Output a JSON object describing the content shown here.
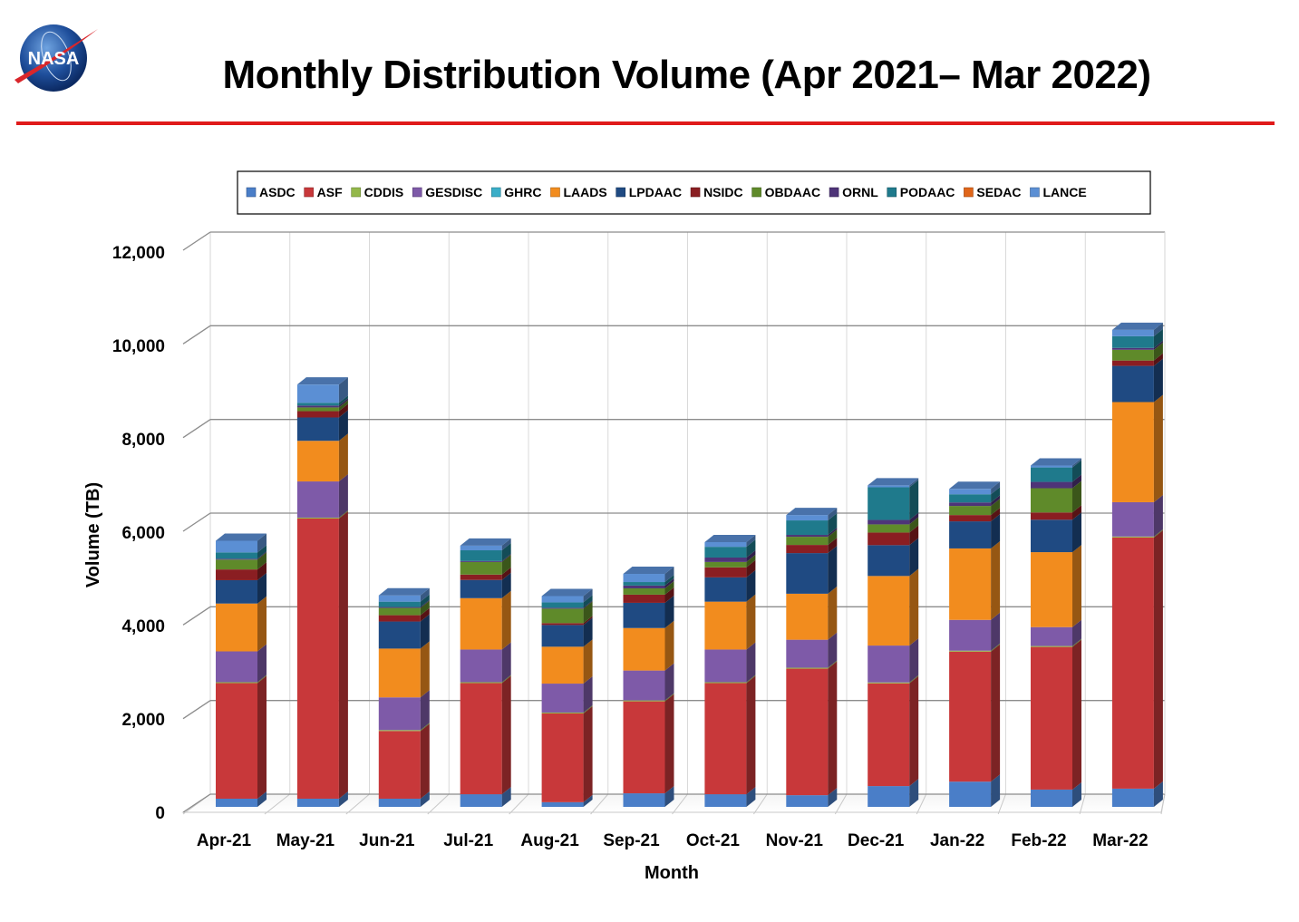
{
  "page": {
    "title": "Monthly Distribution Volume (Apr 2021– Mar 2022)",
    "logo_text": "NASA",
    "accent_rule_color": "#e01a1a"
  },
  "chart_data": {
    "type": "bar",
    "stacked": true,
    "style": "3d-stacked-column",
    "title": "Monthly Distribution Volume (Apr 2021– Mar 2022)",
    "xlabel": "Month",
    "ylabel": "Volume (TB)",
    "ylim": [
      0,
      12000
    ],
    "yticks": [
      0,
      2000,
      4000,
      6000,
      8000,
      10000,
      12000
    ],
    "ytick_labels": [
      "0",
      "2,000",
      "4,000",
      "6,000",
      "8,000",
      "10,000",
      "12,000"
    ],
    "grid": true,
    "legend_position": "top",
    "categories": [
      "Apr-21",
      "May-21",
      "Jun-21",
      "Jul-21",
      "Aug-21",
      "Sep-21",
      "Oct-21",
      "Nov-21",
      "Dec-21",
      "Jan-22",
      "Feb-22",
      "Mar-22"
    ],
    "series": [
      {
        "name": "ASDC",
        "color": "#4a7ec8",
        "values": [
          175,
          175,
          175,
          270,
          100,
          290,
          270,
          250,
          445,
          540,
          370,
          390
        ]
      },
      {
        "name": "ASF",
        "color": "#c8383a",
        "values": [
          2475,
          6000,
          1450,
          2380,
          1900,
          1970,
          2380,
          2710,
          2200,
          2785,
          3055,
          5380
        ]
      },
      {
        "name": "CDDIS",
        "color": "#93b84a",
        "values": [
          20,
          20,
          20,
          20,
          20,
          20,
          20,
          20,
          20,
          20,
          20,
          20
        ]
      },
      {
        "name": "GESDISC",
        "color": "#7e5aa8",
        "values": [
          660,
          775,
          700,
          700,
          620,
          640,
          700,
          600,
          790,
          660,
          405,
          735
        ]
      },
      {
        "name": "GHRC",
        "color": "#3aaec8",
        "values": [
          0,
          0,
          0,
          0,
          0,
          0,
          0,
          0,
          0,
          0,
          0,
          0
        ]
      },
      {
        "name": "LAADS",
        "color": "#f28c1e",
        "values": [
          1025,
          870,
          1045,
          1100,
          790,
          910,
          1025,
          985,
          1490,
          1530,
          1605,
          2145
        ]
      },
      {
        "name": "LPDAAC",
        "color": "#1f4a82",
        "values": [
          500,
          500,
          580,
          390,
          465,
          540,
          520,
          870,
          660,
          580,
          695,
          775
        ]
      },
      {
        "name": "NSIDC",
        "color": "#8a1e22",
        "values": [
          230,
          135,
          135,
          115,
          40,
          175,
          215,
          175,
          270,
          135,
          155,
          115
        ]
      },
      {
        "name": "OBDAAC",
        "color": "#5f8a2a",
        "values": [
          210,
          80,
          155,
          270,
          310,
          135,
          115,
          175,
          175,
          195,
          520,
          230
        ]
      },
      {
        "name": "ORNL",
        "color": "#4e3478",
        "values": [
          20,
          40,
          20,
          20,
          20,
          60,
          95,
          40,
          95,
          75,
          135,
          40
        ]
      },
      {
        "name": "PODAAC",
        "color": "#1f7a8c",
        "values": [
          135,
          60,
          115,
          230,
          115,
          75,
          230,
          310,
          700,
          175,
          310,
          250
        ]
      },
      {
        "name": "SEDAC",
        "color": "#e0661a",
        "values": [
          0,
          0,
          0,
          0,
          0,
          0,
          0,
          0,
          0,
          0,
          0,
          0
        ]
      },
      {
        "name": "LANCE",
        "color": "#5b8fd4",
        "values": [
          250,
          390,
          135,
          100,
          135,
          175,
          100,
          115,
          40,
          115,
          40,
          135
        ]
      }
    ]
  }
}
